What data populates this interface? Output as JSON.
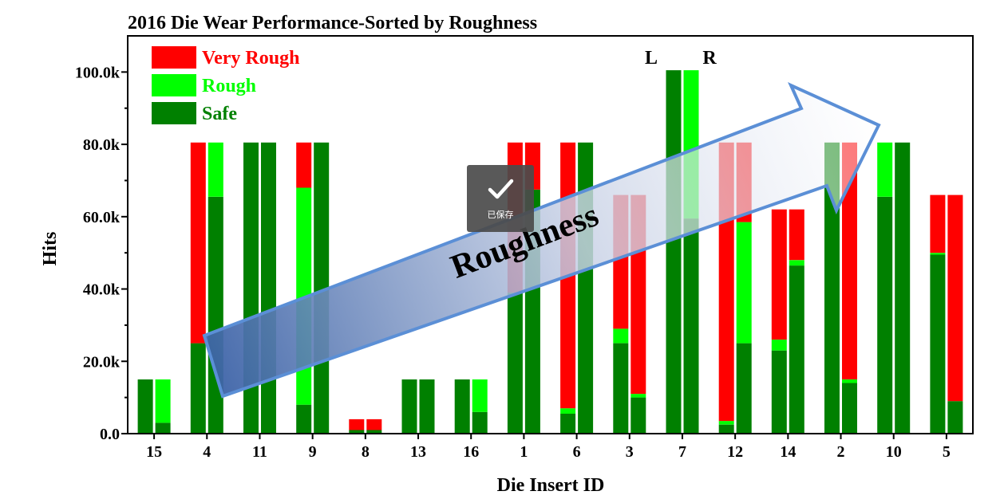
{
  "chart_data": {
    "type": "bar",
    "title": "2016 Die Wear Performance-Sorted by Roughness",
    "xlabel": "Die Insert ID",
    "ylabel": "Hits",
    "ylim": [
      0,
      110000
    ],
    "yticks": [
      0,
      20000,
      40000,
      60000,
      80000,
      100000
    ],
    "ytick_labels": [
      "0.0",
      "20.0k",
      "40.0k",
      "60.0k",
      "80.0k",
      "100.0k"
    ],
    "categories": [
      "15",
      "4",
      "11",
      "9",
      "8",
      "13",
      "16",
      "1",
      "6",
      "3",
      "7",
      "12",
      "14",
      "2",
      "10",
      "5"
    ],
    "sub_bars": [
      "L",
      "R"
    ],
    "stacking": "stacked",
    "series": [
      {
        "name": "Safe",
        "color": "#008000",
        "L": [
          15000,
          25000,
          80500,
          8000,
          1000,
          15000,
          15000,
          39000,
          5500,
          25000,
          100500,
          2500,
          23000,
          80500,
          65500,
          49500
        ],
        "R": [
          3000,
          65500,
          80500,
          80500,
          1000,
          15000,
          6000,
          67500,
          80500,
          10000,
          59500,
          25000,
          46500,
          14000,
          80500,
          9000
        ]
      },
      {
        "name": "Rough",
        "color": "#00ff00",
        "L": [
          0,
          0,
          0,
          60000,
          0,
          0,
          0,
          0,
          1500,
          4000,
          0,
          1000,
          3000,
          0,
          15000,
          500
        ],
        "R": [
          12000,
          15000,
          0,
          0,
          0,
          0,
          9000,
          0,
          0,
          1000,
          41000,
          33500,
          1500,
          1000,
          0,
          0
        ]
      },
      {
        "name": "Very Rough",
        "color": "#ff0000",
        "L": [
          0,
          55500,
          0,
          12500,
          3000,
          0,
          0,
          41500,
          73500,
          37000,
          0,
          77000,
          36000,
          0,
          0,
          16000
        ],
        "R": [
          0,
          0,
          0,
          0,
          3000,
          0,
          0,
          13000,
          0,
          55000,
          0,
          22000,
          14000,
          65500,
          0,
          57000
        ]
      }
    ],
    "legend": {
      "position": "top-left",
      "order": [
        "Very Rough",
        "Rough",
        "Safe"
      ]
    },
    "annotations": {
      "L": "L",
      "R": "R",
      "arrow_label": "Roughness"
    },
    "grid": false
  },
  "overlay": {
    "saved_label": "已保存",
    "check_icon": "check-icon"
  }
}
